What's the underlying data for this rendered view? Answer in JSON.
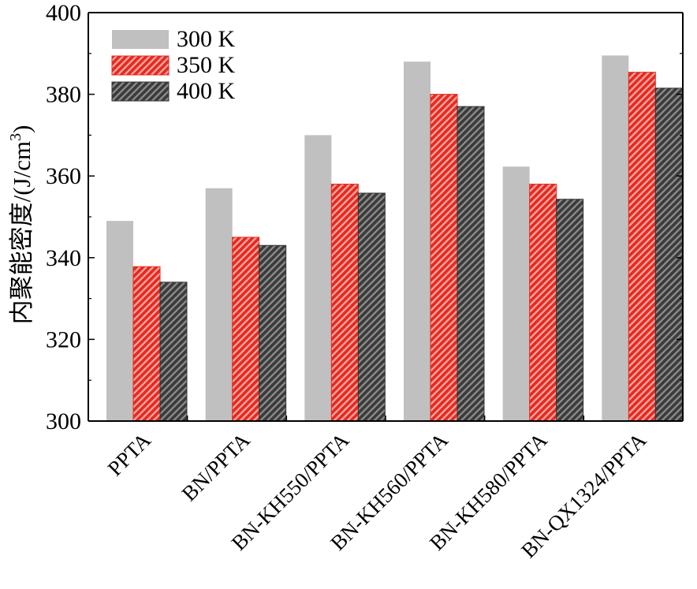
{
  "chart_data": {
    "type": "bar",
    "title": "",
    "xlabel": "",
    "ylabel": "内聚能密度/(J/cm",
    "ylabel_superscript": "3",
    "ylabel_suffix": ")",
    "ylim": [
      300,
      400
    ],
    "yticks": [
      300,
      320,
      340,
      360,
      380,
      400
    ],
    "grid": false,
    "legend_position": "top-left",
    "categories": [
      "PPTA",
      "BN/PPTA",
      "BN-KH550/PPTA",
      "BN-KH560/PPTA",
      "BN-KH580/PPTA",
      "BN-QX1324/PPTA"
    ],
    "series": [
      {
        "name": "300 K",
        "values": [
          349,
          357,
          370,
          388,
          362.3,
          389.5
        ],
        "color": "#c0c0c0",
        "pattern": "solid"
      },
      {
        "name": "350 K",
        "values": [
          337.8,
          345,
          358,
          380,
          358,
          385.4
        ],
        "color": "#e8281e",
        "pattern": "hatch"
      },
      {
        "name": "400 K",
        "values": [
          334,
          343,
          355.8,
          377,
          354.3,
          381.5
        ],
        "color": "#555555",
        "pattern": "hatch"
      }
    ]
  }
}
